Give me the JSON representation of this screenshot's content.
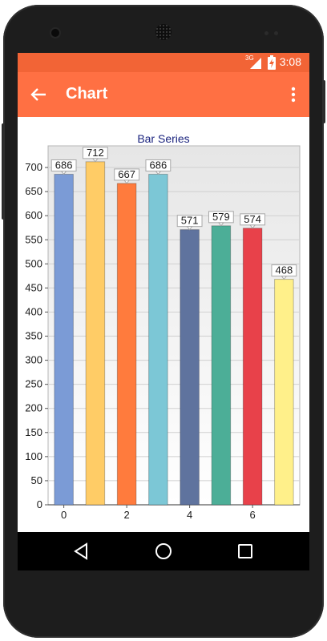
{
  "status_bar": {
    "network": "3G",
    "time": "3:08"
  },
  "app_bar": {
    "title": "Chart",
    "back_icon": "arrow-left-icon",
    "menu_icon": "more-vert-icon"
  },
  "navigation": {
    "back_icon": "triangle-back-icon",
    "home_icon": "circle-home-icon",
    "recents_icon": "square-recents-icon"
  },
  "chart_data": {
    "type": "bar",
    "title": "Bar Series",
    "xlabel": "",
    "ylabel": "",
    "x": [
      0,
      1,
      2,
      3,
      4,
      5,
      6,
      7
    ],
    "x_tick_labels": [
      "0",
      "2",
      "4",
      "6"
    ],
    "values": [
      686,
      712,
      667,
      686,
      571,
      579,
      574,
      468
    ],
    "bar_colors": [
      "#7b9bd6",
      "#ffcc66",
      "#ff7b3d",
      "#7cc7d6",
      "#5f739e",
      "#4cae97",
      "#e8414a",
      "#fff08a"
    ],
    "ylim": [
      0,
      700
    ],
    "y_ticks": [
      0,
      50,
      100,
      150,
      200,
      250,
      300,
      350,
      400,
      450,
      500,
      550,
      600,
      650,
      700
    ],
    "grid": true,
    "legend": "none",
    "data_labels": true,
    "title_color": "#1a237e"
  }
}
